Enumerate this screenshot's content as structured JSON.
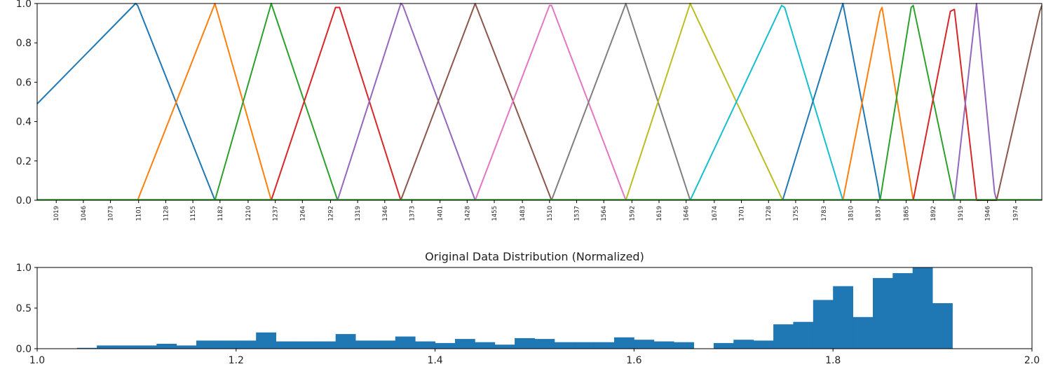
{
  "chart_data": [
    {
      "type": "line",
      "title": "",
      "xlabel": "",
      "ylabel": "",
      "xlim": [
        1000,
        2000
      ],
      "ylim": [
        0,
        1.0
      ],
      "y_ticks": [
        "0.0",
        "0.2",
        "0.4",
        "0.6",
        "0.8",
        "1.0"
      ],
      "x_tick_labels": [
        "1019",
        "1046",
        "1073",
        "1101",
        "1128",
        "1155",
        "1182",
        "1210",
        "1237",
        "1264",
        "1292",
        "1319",
        "1346",
        "1373",
        "1401",
        "1428",
        "1455",
        "1483",
        "1510",
        "1537",
        "1564",
        "1592",
        "1619",
        "1646",
        "1674",
        "1701",
        "1728",
        "1755",
        "1783",
        "1810",
        "1837",
        "1865",
        "1892",
        "1919",
        "1946",
        "1974"
      ],
      "x_tick_values": [
        1019,
        1046,
        1073,
        1101,
        1128,
        1155,
        1182,
        1210,
        1237,
        1264,
        1292,
        1319,
        1346,
        1373,
        1401,
        1428,
        1455,
        1483,
        1510,
        1537,
        1564,
        1592,
        1619,
        1646,
        1674,
        1701,
        1728,
        1755,
        1783,
        1810,
        1837,
        1865,
        1892,
        1919,
        1946,
        1974
      ],
      "series": [
        {
          "color": "#1f77b4",
          "points": [
            [
              1000,
              0.49
            ],
            [
              1098,
              1.0
            ],
            [
              1100,
              0.99
            ],
            [
              1177,
              0
            ]
          ]
        },
        {
          "color": "#ff7f0e",
          "points": [
            [
              1100,
              0
            ],
            [
              1177,
              1.0
            ],
            [
              1233,
              0
            ]
          ]
        },
        {
          "color": "#2ca02c",
          "points": [
            [
              1177,
              0
            ],
            [
              1233,
              1.0
            ],
            [
              1299,
              0
            ]
          ]
        },
        {
          "color": "#d62728",
          "points": [
            [
              1233,
              0
            ],
            [
              1297,
              0.98
            ],
            [
              1301,
              0.98
            ],
            [
              1362,
              0
            ]
          ]
        },
        {
          "color": "#9467bd",
          "points": [
            [
              1299,
              0
            ],
            [
              1362,
              1.0
            ],
            [
              1364,
              0.99
            ],
            [
              1436,
              0
            ]
          ]
        },
        {
          "color": "#8c564b",
          "points": [
            [
              1362,
              0
            ],
            [
              1436,
              1.0
            ],
            [
              1512,
              0
            ]
          ]
        },
        {
          "color": "#e377c2",
          "points": [
            [
              1436,
              0
            ],
            [
              1510,
              0.99
            ],
            [
              1512,
              0.99
            ],
            [
              1586,
              0
            ]
          ]
        },
        {
          "color": "#7f7f7f",
          "points": [
            [
              1512,
              0
            ],
            [
              1586,
              1.0
            ],
            [
              1650,
              0
            ]
          ]
        },
        {
          "color": "#bcbd22",
          "points": [
            [
              1586,
              0
            ],
            [
              1650,
              1.0
            ],
            [
              1742,
              0
            ]
          ]
        },
        {
          "color": "#17becf",
          "points": [
            [
              1650,
              0
            ],
            [
              1741,
              0.99
            ],
            [
              1744,
              0.98
            ],
            [
              1802,
              0
            ]
          ]
        },
        {
          "color": "#1f77b4",
          "points": [
            [
              1742,
              0
            ],
            [
              1802,
              1.0
            ],
            [
              1837,
              0.07
            ],
            [
              1839,
              0
            ]
          ]
        },
        {
          "color": "#ff7f0e",
          "points": [
            [
              1802,
              0
            ],
            [
              1839,
              0.96
            ],
            [
              1841,
              0.98
            ],
            [
              1872,
              0
            ]
          ]
        },
        {
          "color": "#2ca02c",
          "points": [
            [
              1839,
              0
            ],
            [
              1870,
              0.98
            ],
            [
              1872,
              0.99
            ],
            [
              1913,
              0
            ]
          ]
        },
        {
          "color": "#d62728",
          "points": [
            [
              1872,
              0
            ],
            [
              1909,
              0.96
            ],
            [
              1913,
              0.97
            ],
            [
              1935,
              0
            ]
          ]
        },
        {
          "color": "#9467bd",
          "points": [
            [
              1913,
              0
            ],
            [
              1935,
              1.0
            ],
            [
              1953,
              0.04
            ],
            [
              1955,
              0
            ]
          ]
        },
        {
          "color": "#8c564b",
          "points": [
            [
              1935,
              0
            ],
            [
              1955,
              0
            ],
            [
              1998,
              0.96
            ],
            [
              2000,
              0.99
            ]
          ]
        },
        {
          "color": "#2ca02c",
          "points": [
            [
              1000,
              0.003
            ],
            [
              2000,
              0.003
            ]
          ]
        }
      ]
    },
    {
      "type": "bar",
      "title": "Original Data Distribution (Normalized)",
      "xlabel": "",
      "ylabel": "",
      "xlim": [
        1.0,
        2.0
      ],
      "ylim": [
        0,
        1.0
      ],
      "x_ticks": [
        "1.0",
        "1.2",
        "1.4",
        "1.6",
        "1.8",
        "2.0"
      ],
      "y_ticks": [
        "0.0",
        "0.5",
        "1.0"
      ],
      "bin_start": 1.04,
      "bin_width": 0.02,
      "values": [
        0.01,
        0.04,
        0.04,
        0.04,
        0.06,
        0.04,
        0.1,
        0.1,
        0.1,
        0.2,
        0.09,
        0.09,
        0.09,
        0.18,
        0.1,
        0.1,
        0.15,
        0.09,
        0.07,
        0.12,
        0.08,
        0.05,
        0.13,
        0.12,
        0.08,
        0.08,
        0.08,
        0.14,
        0.11,
        0.09,
        0.08,
        0.0,
        0.07,
        0.11,
        0.1,
        0.3,
        0.33,
        0.6,
        0.77,
        0.39,
        0.87,
        0.93,
        1.0,
        0.56
      ],
      "color": "#1f77b4"
    }
  ]
}
